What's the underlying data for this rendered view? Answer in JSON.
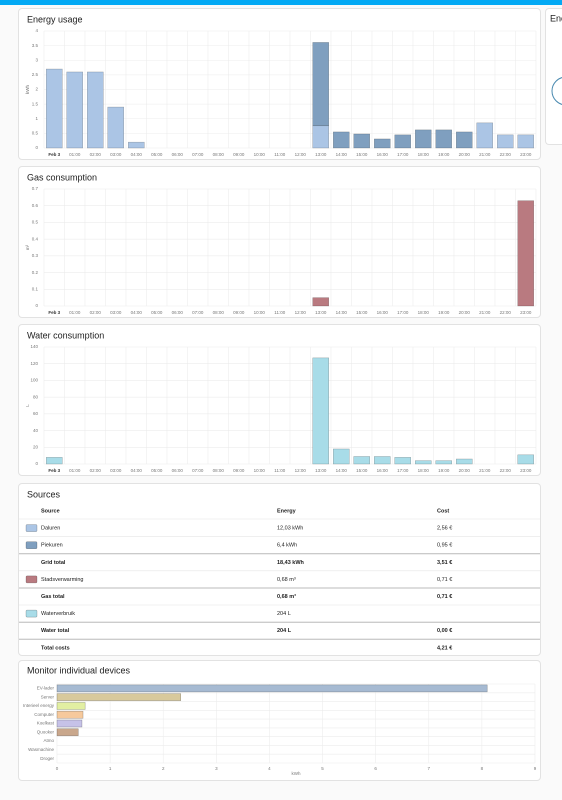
{
  "chart_data": [
    {
      "type": "bar",
      "title": "Energy usage",
      "y_label": "kWh",
      "grid": true,
      "categories": [
        "Feb 3",
        "01:00",
        "02:00",
        "03:00",
        "04:00",
        "05:00",
        "06:00",
        "07:00",
        "08:00",
        "09:00",
        "10:00",
        "11:00",
        "12:00",
        "13:00",
        "14:00",
        "15:00",
        "16:00",
        "17:00",
        "18:00",
        "19:00",
        "20:00",
        "21:00",
        "22:00",
        "23:00"
      ],
      "series": [
        {
          "color": "#abc5e5",
          "values": [
            2.7,
            2.6,
            2.6,
            1.4,
            0.2,
            0,
            0,
            0,
            0,
            0,
            0,
            0,
            0,
            0.76,
            0,
            0,
            0,
            0,
            0,
            0,
            0,
            0.86,
            0.45,
            0.45
          ]
        },
        {
          "color": "#7f9fbf",
          "values": [
            0,
            0,
            0,
            0,
            0,
            0,
            0,
            0,
            0,
            0,
            0,
            0,
            0,
            2.85,
            0.55,
            0.48,
            0.31,
            0.45,
            0.62,
            0.62,
            0.55,
            0,
            0,
            0
          ]
        }
      ],
      "ylim": [
        0,
        4
      ],
      "yticks": [
        0,
        0.5,
        1,
        1.5,
        2,
        2.5,
        3,
        3.5,
        4
      ]
    },
    {
      "type": "bar",
      "title": "Gas consumption",
      "y_label": "m³",
      "grid": true,
      "categories": [
        "Feb 3",
        "01:00",
        "02:00",
        "03:00",
        "04:00",
        "05:00",
        "06:00",
        "07:00",
        "08:00",
        "09:00",
        "10:00",
        "11:00",
        "12:00",
        "13:00",
        "14:00",
        "15:00",
        "16:00",
        "17:00",
        "18:00",
        "19:00",
        "20:00",
        "21:00",
        "22:00",
        "23:00"
      ],
      "series": [
        {
          "color": "#b97a80",
          "values": [
            0,
            0,
            0,
            0,
            0,
            0,
            0,
            0,
            0,
            0,
            0,
            0,
            0,
            0.05,
            0,
            0,
            0,
            0,
            0,
            0,
            0,
            0,
            0,
            0.63
          ]
        }
      ],
      "ylim": [
        0,
        0.7
      ],
      "yticks": [
        0,
        0.1,
        0.2,
        0.3,
        0.4,
        0.5,
        0.6,
        0.7
      ]
    },
    {
      "type": "bar",
      "title": "Water consumption",
      "y_label": "L",
      "grid": true,
      "categories": [
        "Feb 3",
        "01:00",
        "02:00",
        "03:00",
        "04:00",
        "05:00",
        "06:00",
        "07:00",
        "08:00",
        "09:00",
        "10:00",
        "11:00",
        "12:00",
        "13:00",
        "14:00",
        "15:00",
        "16:00",
        "17:00",
        "18:00",
        "19:00",
        "20:00",
        "21:00",
        "22:00",
        "23:00"
      ],
      "series": [
        {
          "color": "#a8dce8",
          "values": [
            8,
            0,
            0,
            0,
            0,
            0,
            0,
            0,
            0,
            0,
            0,
            0,
            0,
            127,
            18,
            9,
            9,
            8,
            4,
            4,
            6,
            0,
            0,
            11
          ]
        }
      ],
      "ylim": [
        0,
        140
      ],
      "yticks": [
        0,
        20,
        40,
        60,
        80,
        100,
        120,
        140
      ]
    },
    {
      "type": "hbar",
      "title": "Monitor individual devices",
      "x_label": "kWh",
      "grid": true,
      "categories": [
        "EV-lader",
        "Server",
        "Interieel energy",
        "Computer",
        "Koelkast",
        "Quooker",
        "Atmo",
        "Wasmachine",
        "Droger"
      ],
      "values": [
        8.1,
        2.33,
        0.53,
        0.49,
        0.47,
        0.4,
        0,
        0,
        0
      ],
      "colors": [
        "#a6bad2",
        "#d8c99c",
        "#e2efa2",
        "#f6c99c",
        "#c6c2e8",
        "#c9a78c",
        "#cccccc",
        "#cccccc",
        "#cccccc"
      ],
      "xlim": [
        0,
        9
      ],
      "xticks": [
        0,
        1,
        2,
        3,
        4,
        5,
        6,
        7,
        8,
        9
      ]
    }
  ],
  "sources": {
    "title": "Sources",
    "header": [
      "Source",
      "Energy",
      "Cost"
    ],
    "rows": [
      {
        "color": "#abc5e5",
        "cells": [
          "Daluren",
          "12,03 kWh",
          "2,56 €"
        ]
      },
      {
        "color": "#7f9fbf",
        "cells": [
          "Piekuren",
          "6,4 kWh",
          "0,95 €"
        ]
      },
      {
        "total": true,
        "cells": [
          "Grid total",
          "18,43 kWh",
          "3,51 €"
        ]
      },
      {
        "color": "#b97a80",
        "cells": [
          "Stadsverwarming",
          "0,68 m³",
          "0,71 €"
        ]
      },
      {
        "total": true,
        "cells": [
          "Gas total",
          "0,68 m³",
          "0,71 €"
        ]
      },
      {
        "color": "#a8dce8",
        "cells": [
          "Waterverbruik",
          "204 L",
          ""
        ]
      },
      {
        "total": true,
        "cells": [
          "Water total",
          "204 L",
          "0,00 €"
        ]
      },
      {
        "total": true,
        "cells": [
          "Total costs",
          "",
          "4,21 €"
        ]
      }
    ]
  },
  "side": {
    "title": "Ene"
  }
}
